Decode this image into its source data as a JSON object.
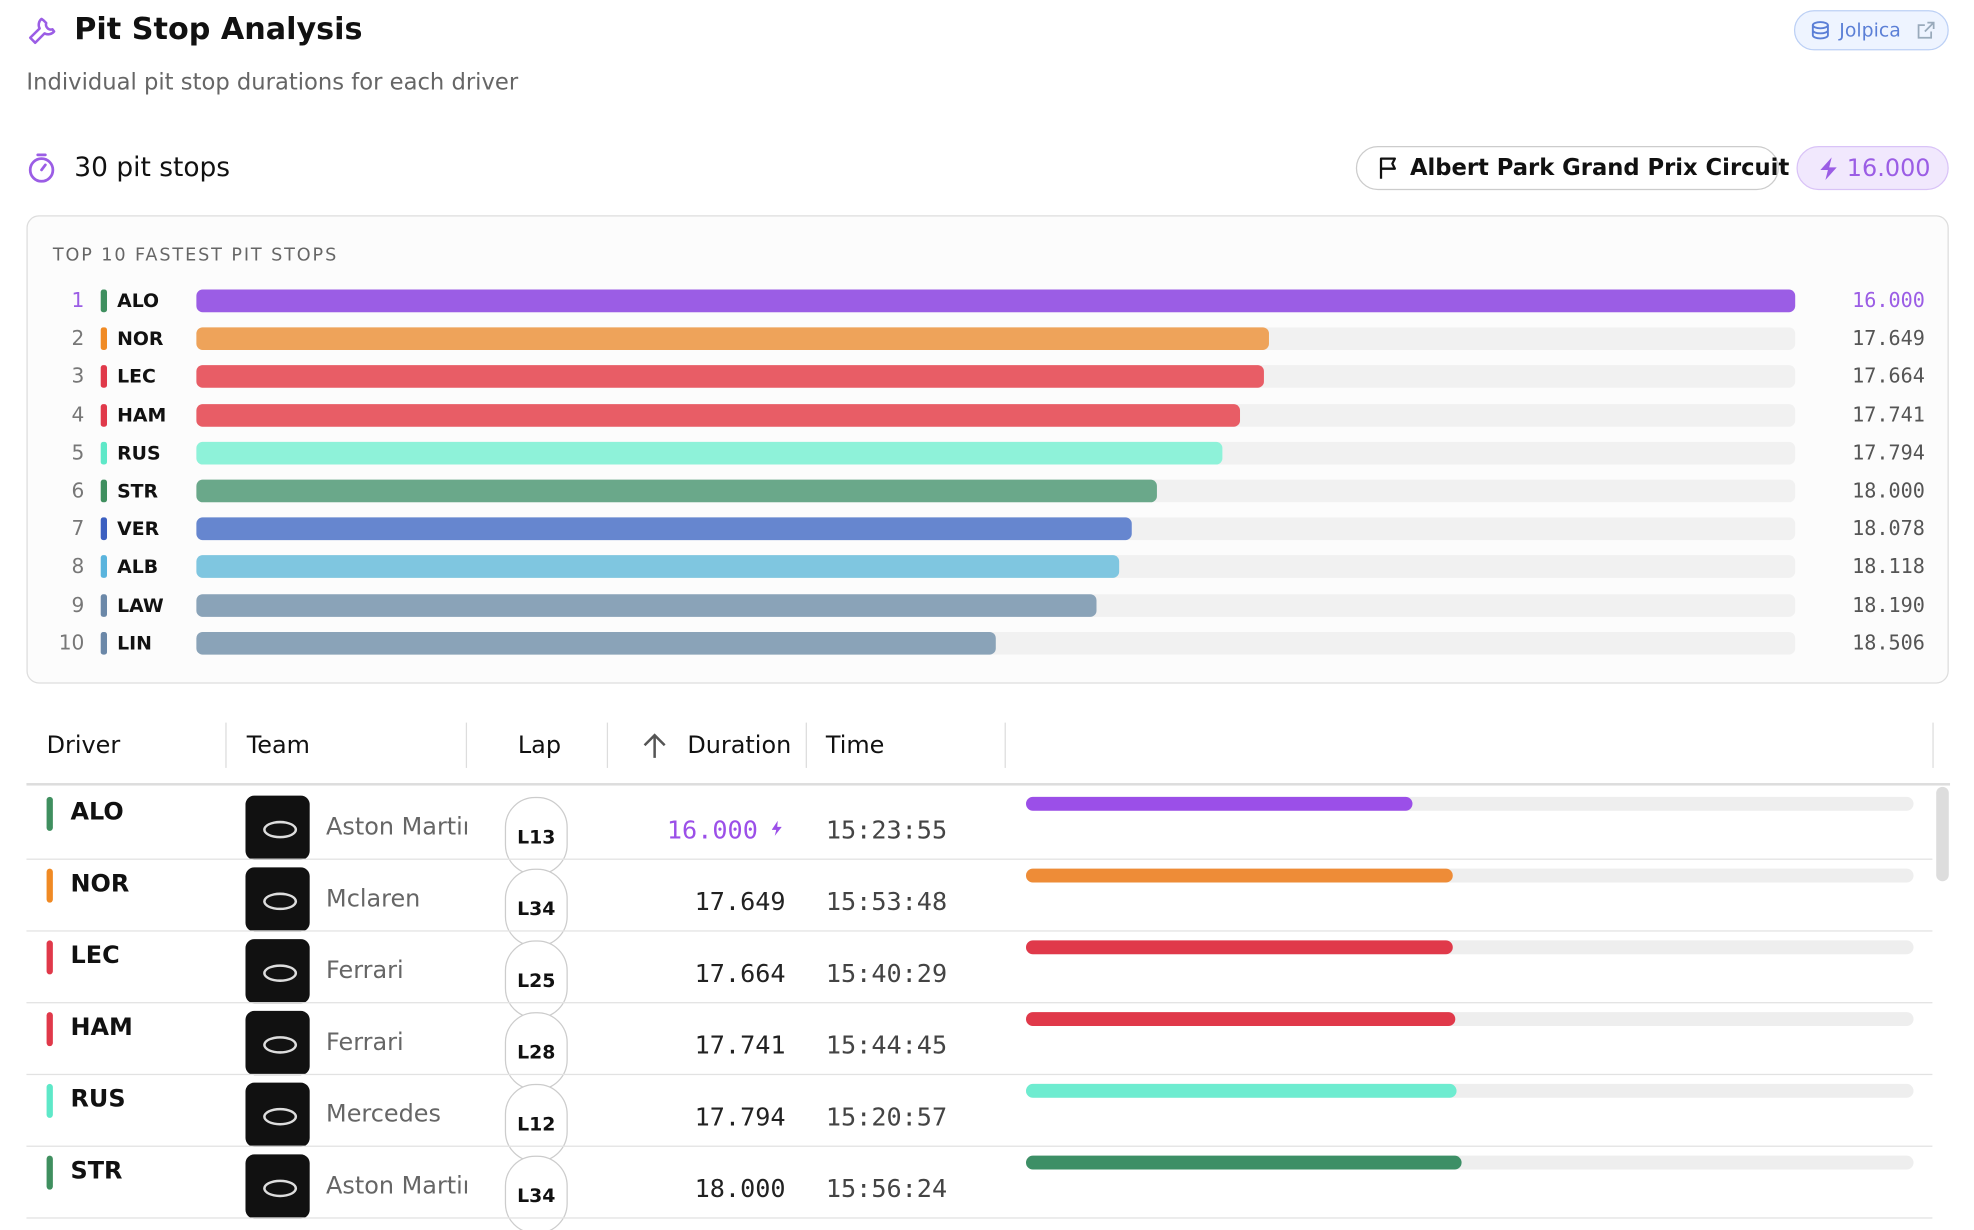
{
  "header": {
    "title": "Pit Stop Analysis",
    "subtitle": "Individual pit stop durations for each driver",
    "source": "Jolpica"
  },
  "summary": {
    "count_label": "30 pit stops",
    "circuit": "Albert Park Grand Prix Circuit",
    "fastest": "16.000"
  },
  "chart_data": {
    "type": "bar",
    "orientation": "horizontal",
    "title": "TOP 10 FASTEST PIT STOPS",
    "ranks": [
      1,
      2,
      3,
      4,
      5,
      6,
      7,
      8,
      9,
      10
    ],
    "categories": [
      "ALO",
      "NOR",
      "LEC",
      "HAM",
      "RUS",
      "STR",
      "VER",
      "ALB",
      "LAW",
      "LIN"
    ],
    "values": [
      16,
      17.649,
      17.664,
      17.741,
      17.794,
      18,
      18.078,
      18.118,
      18.19,
      18.506
    ],
    "value_labels": [
      "16.000",
      "17.649",
      "17.664",
      "17.741",
      "17.794",
      "18.000",
      "18.078",
      "18.118",
      "18.190",
      "18.506"
    ],
    "colors": [
      "#9b5de5",
      "#eea35a",
      "#e85d66",
      "#e85d66",
      "#8ef2d9",
      "#6aa88a",
      "#6686cf",
      "#7fc6e0",
      "#8aa3b8",
      "#8aa3b8"
    ],
    "team_colors": [
      "#3f8f5f",
      "#f08a24",
      "#e0394a",
      "#e0394a",
      "#5ee8c8",
      "#3f8f5f",
      "#3b5fc0",
      "#5ab4dd",
      "#6b88a8",
      "#6b88a8"
    ]
  },
  "table": {
    "columns": [
      "Driver",
      "Team",
      "Lap",
      "Duration",
      "Time"
    ],
    "xlim": [
      0,
      36.7
    ],
    "rows": [
      {
        "driver": "ALO",
        "team": "Aston Martin",
        "lap": "L13",
        "duration": {
          "value": 16,
          "label": "16.000"
        },
        "time": "15:23:55",
        "color": "#9b4fe8",
        "team_color": "#3f8f5f"
      },
      {
        "driver": "NOR",
        "team": "Mclaren",
        "lap": "L34",
        "duration": {
          "value": 17.649,
          "label": "17.649"
        },
        "time": "15:53:48",
        "color": "#ee8c37",
        "team_color": "#f08a24"
      },
      {
        "driver": "LEC",
        "team": "Ferrari",
        "lap": "L25",
        "duration": {
          "value": 17.664,
          "label": "17.664"
        },
        "time": "15:40:29",
        "color": "#e0394a",
        "team_color": "#e0394a"
      },
      {
        "driver": "HAM",
        "team": "Ferrari",
        "lap": "L28",
        "duration": {
          "value": 17.741,
          "label": "17.741"
        },
        "time": "15:44:45",
        "color": "#e0394a",
        "team_color": "#e0394a"
      },
      {
        "driver": "RUS",
        "team": "Mercedes",
        "lap": "L12",
        "duration": {
          "value": 17.794,
          "label": "17.794"
        },
        "time": "15:20:57",
        "color": "#6eecd0",
        "team_color": "#5ee8c8"
      },
      {
        "driver": "STR",
        "team": "Aston Martin",
        "lap": "L34",
        "duration": {
          "value": 18,
          "label": "18.000"
        },
        "time": "15:56:24",
        "color": "#3d8f66",
        "team_color": "#3f8f5f"
      }
    ]
  }
}
